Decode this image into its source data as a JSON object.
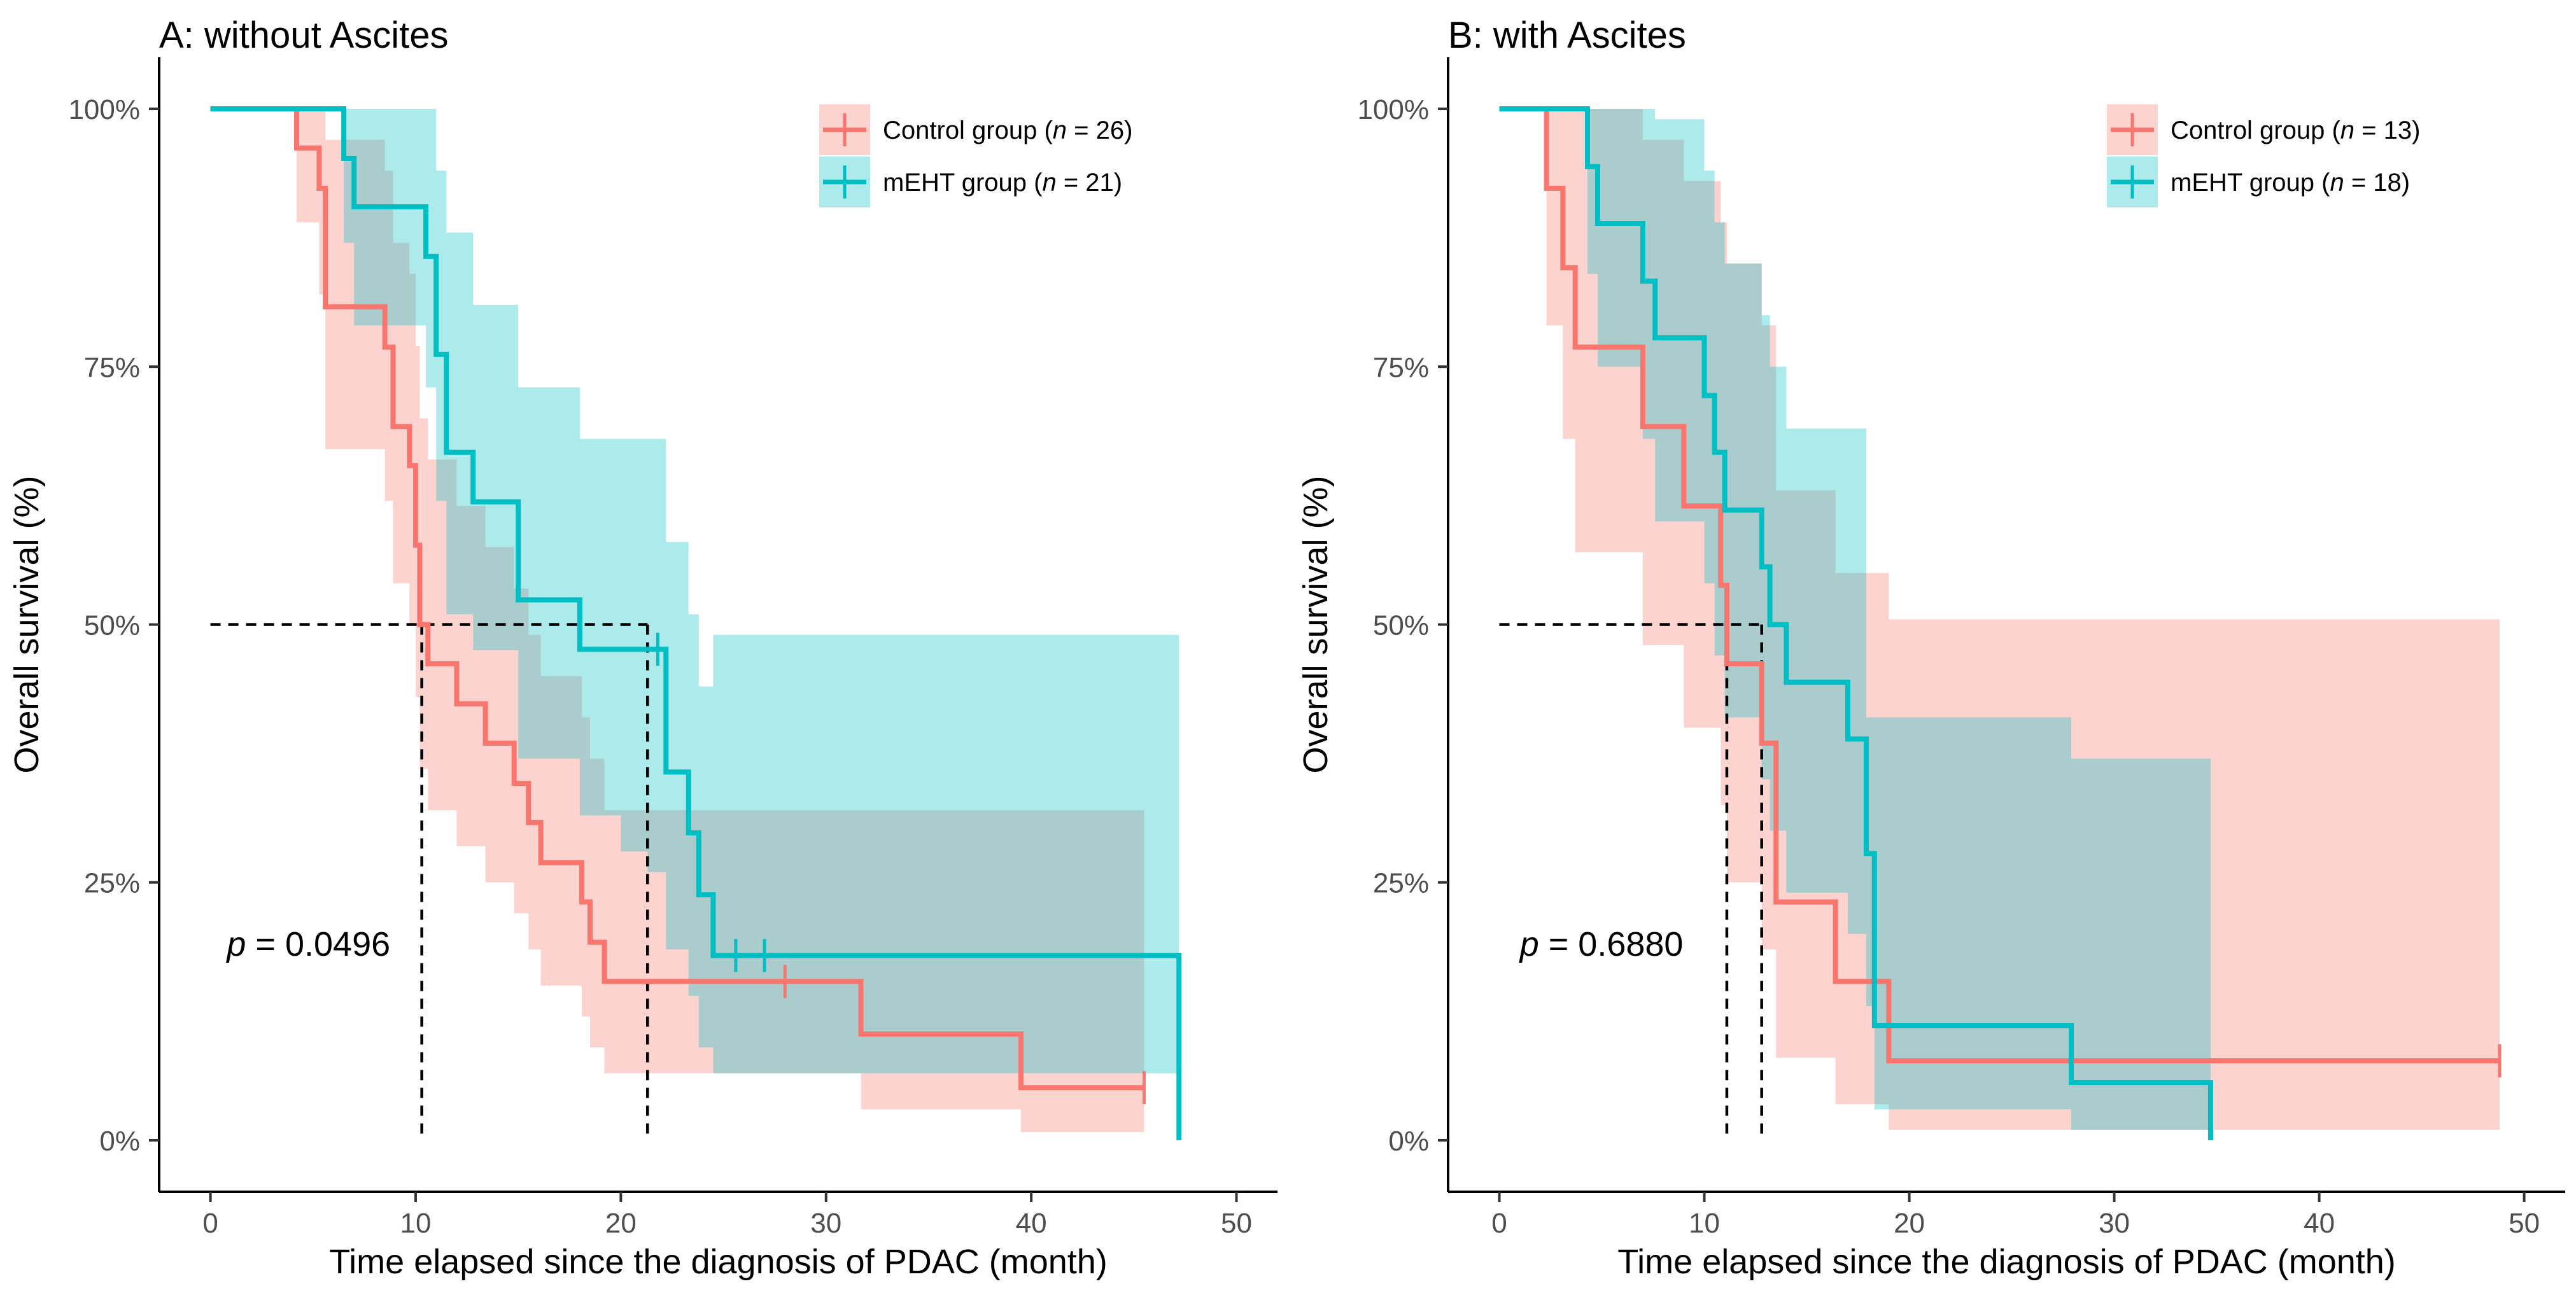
{
  "colors": {
    "control": "#F8766D",
    "control_band": "#F8766D",
    "meht": "#00BFC4",
    "meht_band": "#00BFC4",
    "axis": "#000000",
    "tick_text": "#4d4d4d"
  },
  "chart_data": [
    {
      "type": "line",
      "subtype": "kaplan-meier",
      "title": "A: without Ascites",
      "xlabel": "Time elapsed since the diagnosis of PDAC (month)",
      "ylabel": "Overall survival (%)",
      "xlim": [
        -2.5,
        52
      ],
      "ylim": [
        -0.05,
        1.05
      ],
      "xticks": [
        0,
        10,
        20,
        30,
        40,
        50
      ],
      "yticks": [
        0,
        0.25,
        0.5,
        0.75,
        1.0
      ],
      "ytick_labels": [
        "0%",
        "25%",
        "50%",
        "75%",
        "100%"
      ],
      "pvalue": {
        "prefix": "p",
        "text": " = 0.0496",
        "x": 0.8,
        "y": 0.19
      },
      "median_lines": [
        10.3,
        21.3
      ],
      "legend_position": "top-right",
      "series": [
        {
          "name": "Control group",
          "legend_prefix": "Control group (",
          "legend_n": "n",
          "legend_suffix": " = 26)",
          "color_key": "control",
          "times": [
            0,
            4.2,
            5.3,
            5.6,
            8.5,
            8.9,
            9.7,
            10,
            10.2,
            10.6,
            12,
            13.4,
            14.8,
            15.5,
            16.1,
            18.1,
            18.5,
            19.2,
            31.7,
            39.5,
            45.5
          ],
          "surv": [
            1.0,
            0.962,
            0.923,
            0.808,
            0.769,
            0.692,
            0.654,
            0.577,
            0.5,
            0.462,
            0.423,
            0.385,
            0.346,
            0.308,
            0.269,
            0.231,
            0.192,
            0.154,
            0.103,
            0.051,
            0.051
          ],
          "lower": [
            1.0,
            0.89,
            0.82,
            0.67,
            0.62,
            0.54,
            0.5,
            0.43,
            0.36,
            0.32,
            0.285,
            0.25,
            0.22,
            0.185,
            0.15,
            0.12,
            0.09,
            0.065,
            0.03,
            0.008,
            0.008
          ],
          "upper": [
            1.0,
            1.0,
            1.0,
            0.97,
            0.94,
            0.87,
            0.84,
            0.77,
            0.7,
            0.66,
            0.615,
            0.575,
            0.535,
            0.49,
            0.45,
            0.41,
            0.37,
            0.32,
            0.32,
            0.32,
            0.32
          ],
          "censors": [
            [
              28.0,
              0.154
            ],
            [
              45.5,
              0.051
            ]
          ]
        },
        {
          "name": "mEHT group",
          "legend_prefix": "mEHT group (",
          "legend_n": "n",
          "legend_suffix": " = 21)",
          "color_key": "meht",
          "times": [
            0,
            6.5,
            7,
            10.5,
            11,
            11.5,
            12.8,
            15,
            18,
            20,
            21.3,
            22.2,
            23.3,
            23.8,
            24.5,
            47.2
          ],
          "surv": [
            1.0,
            0.952,
            0.905,
            0.857,
            0.762,
            0.667,
            0.619,
            0.524,
            0.476,
            0.476,
            0.476,
            0.357,
            0.298,
            0.238,
            0.179,
            0.0
          ],
          "lower": [
            1.0,
            0.87,
            0.79,
            0.73,
            0.62,
            0.51,
            0.475,
            0.37,
            0.315,
            0.28,
            0.26,
            0.185,
            0.14,
            0.09,
            0.065,
            0.065
          ],
          "upper": [
            1.0,
            1.0,
            1.0,
            1.0,
            0.94,
            0.88,
            0.81,
            0.73,
            0.68,
            0.68,
            0.68,
            0.58,
            0.51,
            0.44,
            0.49,
            0.49
          ],
          "censors": [
            [
              21.8,
              0.476
            ],
            [
              25.6,
              0.179
            ],
            [
              27.0,
              0.179
            ]
          ]
        }
      ]
    },
    {
      "type": "line",
      "subtype": "kaplan-meier",
      "title": "B: with Ascites",
      "xlabel": "Time elapsed since the diagnosis of PDAC (month)",
      "ylabel": "Overall survival (%)",
      "xlim": [
        -2.5,
        52
      ],
      "ylim": [
        -0.05,
        1.05
      ],
      "xticks": [
        0,
        10,
        20,
        30,
        40,
        50
      ],
      "yticks": [
        0,
        0.25,
        0.5,
        0.75,
        1.0
      ],
      "ytick_labels": [
        "0%",
        "25%",
        "50%",
        "75%",
        "100%"
      ],
      "pvalue": {
        "prefix": "p",
        "text": " = 0.6880",
        "x": 1.0,
        "y": 0.19
      },
      "median_lines": [
        11.1,
        12.8
      ],
      "legend_position": "top-right",
      "series": [
        {
          "name": "Control group",
          "legend_prefix": "Control group (",
          "legend_n": "n",
          "legend_suffix": " = 13)",
          "color_key": "control",
          "times": [
            0,
            2.3,
            3.1,
            3.7,
            7,
            9,
            10.8,
            11.1,
            12.8,
            13.5,
            16.4,
            19,
            48.8
          ],
          "surv": [
            1.0,
            0.923,
            0.846,
            0.769,
            0.692,
            0.615,
            0.538,
            0.462,
            0.385,
            0.231,
            0.154,
            0.077,
            0.077
          ],
          "lower": [
            1.0,
            0.79,
            0.68,
            0.57,
            0.48,
            0.4,
            0.325,
            0.25,
            0.185,
            0.08,
            0.035,
            0.01,
            0.01
          ],
          "upper": [
            1.0,
            1.0,
            1.0,
            1.0,
            0.97,
            0.93,
            0.89,
            0.85,
            0.79,
            0.63,
            0.55,
            0.505,
            0.505
          ],
          "censors": [
            [
              48.8,
              0.077
            ]
          ]
        },
        {
          "name": "mEHT group",
          "legend_prefix": "mEHT group (",
          "legend_n": "n",
          "legend_suffix": " = 18)",
          "color_key": "meht",
          "times": [
            0,
            4.3,
            4.8,
            7,
            7.6,
            10,
            10.5,
            11,
            12.8,
            13.2,
            14,
            17,
            17.9,
            18.3,
            27.9,
            34.7
          ],
          "surv": [
            1.0,
            0.944,
            0.889,
            0.833,
            0.778,
            0.722,
            0.667,
            0.611,
            0.556,
            0.5,
            0.444,
            0.389,
            0.278,
            0.111,
            0.056,
            0.0
          ],
          "lower": [
            1.0,
            0.84,
            0.75,
            0.68,
            0.6,
            0.54,
            0.47,
            0.41,
            0.35,
            0.3,
            0.24,
            0.2,
            0.13,
            0.03,
            0.01,
            0.01
          ],
          "upper": [
            1.0,
            1.0,
            1.0,
            1.0,
            0.99,
            0.94,
            0.89,
            0.85,
            0.8,
            0.75,
            0.69,
            0.69,
            0.41,
            0.41,
            0.37,
            0.37
          ],
          "censors": []
        }
      ]
    }
  ]
}
